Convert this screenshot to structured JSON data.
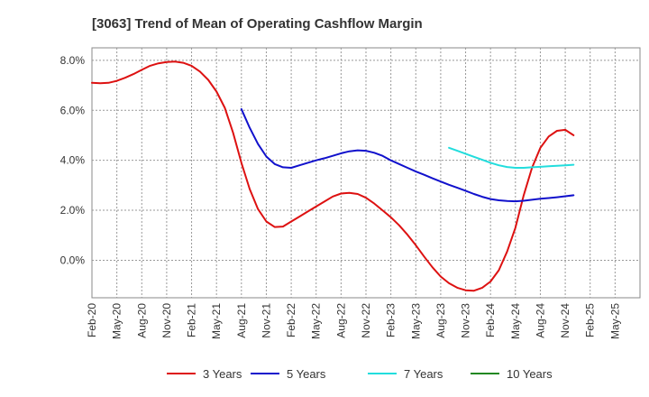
{
  "chart_data": {
    "type": "line",
    "title": "[3063]  Trend of Mean of Operating Cashflow Margin",
    "xlabel": "",
    "ylabel": "",
    "ylim": [
      -1.5,
      8.5
    ],
    "yticks": [
      "8.0%",
      "6.0%",
      "4.0%",
      "2.0%",
      "0.0%"
    ],
    "ytick_values": [
      8,
      6,
      4,
      2,
      0
    ],
    "xticks": [
      "Feb-20",
      "May-20",
      "Aug-20",
      "Nov-20",
      "Feb-21",
      "May-21",
      "Aug-21",
      "Nov-21",
      "Feb-22",
      "May-22",
      "Aug-22",
      "Nov-22",
      "Feb-23",
      "May-23",
      "Aug-23",
      "Nov-23",
      "Feb-24",
      "May-24",
      "Aug-24",
      "Nov-24",
      "Feb-25",
      "May-25"
    ],
    "grid": "dashed",
    "legend_position": "bottom",
    "series": [
      {
        "name": "3 Years",
        "color": "#dd1111",
        "points": [
          [
            0,
            7.1
          ],
          [
            1,
            7.08
          ],
          [
            2,
            7.1
          ],
          [
            3,
            7.18
          ],
          [
            4,
            7.3
          ],
          [
            5,
            7.45
          ],
          [
            6,
            7.62
          ],
          [
            7,
            7.78
          ],
          [
            8,
            7.88
          ],
          [
            9,
            7.93
          ],
          [
            10,
            7.95
          ],
          [
            11,
            7.9
          ],
          [
            12,
            7.78
          ],
          [
            13,
            7.55
          ],
          [
            14,
            7.22
          ],
          [
            15,
            6.75
          ],
          [
            16,
            6.1
          ],
          [
            17,
            5.1
          ],
          [
            18,
            3.9
          ],
          [
            19,
            2.85
          ],
          [
            20,
            2.05
          ],
          [
            21,
            1.55
          ],
          [
            22,
            1.33
          ],
          [
            23,
            1.35
          ],
          [
            24,
            1.55
          ],
          [
            25,
            1.75
          ],
          [
            26,
            1.95
          ],
          [
            27,
            2.15
          ],
          [
            28,
            2.35
          ],
          [
            29,
            2.55
          ],
          [
            30,
            2.67
          ],
          [
            31,
            2.7
          ],
          [
            32,
            2.65
          ],
          [
            33,
            2.5
          ],
          [
            34,
            2.27
          ],
          [
            35,
            2.0
          ],
          [
            36,
            1.72
          ],
          [
            37,
            1.4
          ],
          [
            38,
            1.02
          ],
          [
            39,
            0.6
          ],
          [
            40,
            0.15
          ],
          [
            41,
            -0.28
          ],
          [
            42,
            -0.65
          ],
          [
            43,
            -0.92
          ],
          [
            44,
            -1.1
          ],
          [
            45,
            -1.2
          ],
          [
            46,
            -1.22
          ],
          [
            47,
            -1.1
          ],
          [
            48,
            -0.85
          ],
          [
            49,
            -0.4
          ],
          [
            50,
            0.35
          ],
          [
            51,
            1.3
          ],
          [
            52,
            2.6
          ],
          [
            53,
            3.7
          ],
          [
            54,
            4.5
          ],
          [
            55,
            4.95
          ],
          [
            56,
            5.18
          ],
          [
            57,
            5.22
          ],
          [
            58,
            5.0
          ]
        ]
      },
      {
        "name": "5 Years",
        "color": "#1111cc",
        "points": [
          [
            18,
            6.05
          ],
          [
            19,
            5.3
          ],
          [
            20,
            4.65
          ],
          [
            21,
            4.15
          ],
          [
            22,
            3.85
          ],
          [
            23,
            3.72
          ],
          [
            24,
            3.7
          ],
          [
            25,
            3.8
          ],
          [
            26,
            3.9
          ],
          [
            27,
            4.0
          ],
          [
            28,
            4.08
          ],
          [
            29,
            4.18
          ],
          [
            30,
            4.28
          ],
          [
            31,
            4.36
          ],
          [
            32,
            4.4
          ],
          [
            33,
            4.38
          ],
          [
            34,
            4.3
          ],
          [
            35,
            4.18
          ],
          [
            36,
            4.0
          ],
          [
            37,
            3.85
          ],
          [
            38,
            3.7
          ],
          [
            39,
            3.55
          ],
          [
            40,
            3.42
          ],
          [
            41,
            3.28
          ],
          [
            42,
            3.15
          ],
          [
            43,
            3.02
          ],
          [
            44,
            2.9
          ],
          [
            45,
            2.78
          ],
          [
            46,
            2.65
          ],
          [
            47,
            2.54
          ],
          [
            48,
            2.45
          ],
          [
            49,
            2.4
          ],
          [
            50,
            2.37
          ],
          [
            51,
            2.36
          ],
          [
            52,
            2.38
          ],
          [
            53,
            2.42
          ],
          [
            54,
            2.46
          ],
          [
            55,
            2.49
          ],
          [
            56,
            2.52
          ],
          [
            57,
            2.56
          ],
          [
            58,
            2.6
          ]
        ]
      },
      {
        "name": "7 Years",
        "color": "#22dddd",
        "points": [
          [
            43,
            4.5
          ],
          [
            44,
            4.38
          ],
          [
            45,
            4.26
          ],
          [
            46,
            4.14
          ],
          [
            47,
            4.02
          ],
          [
            48,
            3.9
          ],
          [
            49,
            3.8
          ],
          [
            50,
            3.73
          ],
          [
            51,
            3.7
          ],
          [
            52,
            3.7
          ],
          [
            53,
            3.72
          ],
          [
            54,
            3.74
          ],
          [
            55,
            3.76
          ],
          [
            56,
            3.78
          ],
          [
            57,
            3.8
          ],
          [
            58,
            3.82
          ]
        ]
      },
      {
        "name": "10 Years",
        "color": "#228822",
        "points": []
      }
    ]
  }
}
